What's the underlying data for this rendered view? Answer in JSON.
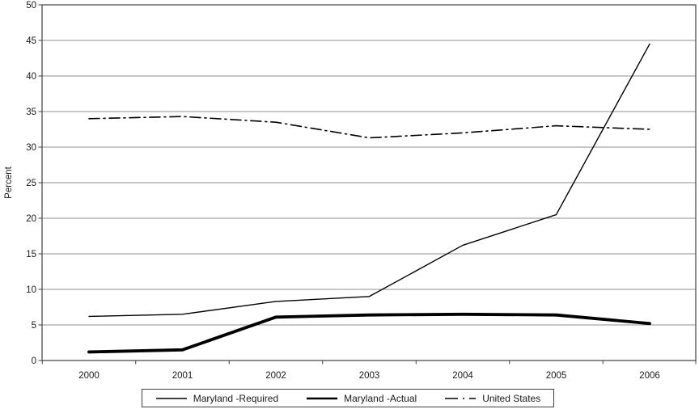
{
  "chart_data": {
    "type": "line",
    "title": "",
    "xlabel": "",
    "ylabel": "Percent",
    "x": [
      "2000",
      "2001",
      "2002",
      "2003",
      "2004",
      "2005",
      "2006"
    ],
    "ylim": [
      0,
      50
    ],
    "yticks": [
      0,
      5,
      10,
      15,
      20,
      25,
      30,
      35,
      40,
      45,
      50
    ],
    "grid": true,
    "legend_position": "bottom",
    "series": [
      {
        "name": "Maryland -Required",
        "values": [
          6.2,
          6.5,
          8.3,
          9.0,
          16.2,
          20.5,
          44.5
        ],
        "line_style": "solid",
        "weight": "thin"
      },
      {
        "name": "Maryland -Actual",
        "values": [
          1.2,
          1.5,
          6.1,
          6.4,
          6.5,
          6.4,
          5.2
        ],
        "line_style": "solid",
        "weight": "thick"
      },
      {
        "name": "United States",
        "values": [
          34.0,
          34.3,
          33.5,
          31.3,
          32.0,
          33.0,
          32.5
        ],
        "line_style": "dash-dot",
        "weight": "thin"
      }
    ],
    "colors": {
      "line": "#000000",
      "grid": "#909090",
      "axis": "#404040",
      "text": "#1a1a1a",
      "background": "#ffffff"
    }
  }
}
